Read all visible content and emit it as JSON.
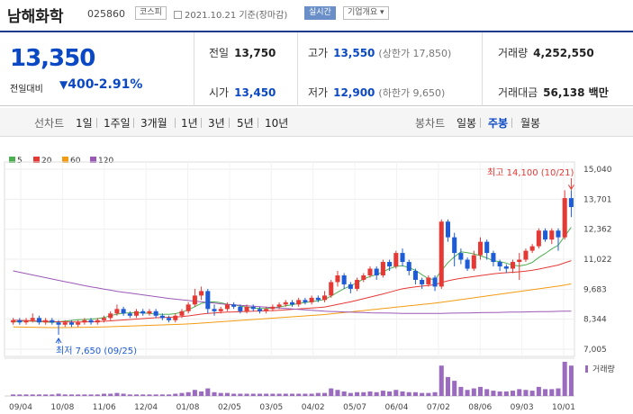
{
  "header": {
    "name": "남해화학",
    "code": "025860",
    "market": "코스피",
    "date": "2021.10.21 기준(장마감)",
    "realtime": "실시간",
    "corp_info": "기업개요"
  },
  "quote": {
    "price": "13,350",
    "change_label": "전일대비",
    "change_value": "400",
    "change_pct": "-2.91%",
    "prev_close_label": "전일",
    "prev_close": "13,750",
    "high_label": "고가",
    "high": "13,550",
    "high_limit": "(상한가 17,850)",
    "volume_label": "거래량",
    "volume": "4,252,550",
    "open_label": "시가",
    "open": "13,450",
    "low_label": "저가",
    "low": "12,900",
    "low_limit": "(하한가 9,650)",
    "amount_label": "거래대금",
    "amount": "56,138 백만"
  },
  "tabs": {
    "line_label": "선차트",
    "line_periods": [
      "1일",
      "1주일",
      "3개월",
      "1년",
      "3년",
      "5년",
      "10년"
    ],
    "candle_label": "봉차트",
    "candle_periods": [
      "일봉",
      "주봉",
      "월봉"
    ],
    "active": "주봉"
  },
  "chart_data": {
    "type": "candlestick",
    "legend": [
      {
        "name": "5",
        "color": "#4caf50"
      },
      {
        "name": "20",
        "color": "#e53935"
      },
      {
        "name": "60",
        "color": "#f39c12"
      },
      {
        "name": "120",
        "color": "#9b59b6"
      }
    ],
    "y_ticks": [
      "15,040",
      "13,701",
      "12,362",
      "11,022",
      "9,683",
      "8,344",
      "7,005"
    ],
    "ylim": [
      7005,
      15040
    ],
    "x_ticks": [
      "09/04",
      "10/08",
      "11/06",
      "12/04",
      "01/08",
      "02/05",
      "03/05",
      "04/02",
      "05/07",
      "06/04",
      "07/02",
      "08/06",
      "09/03",
      "10/01"
    ],
    "high_annotation": "최고 14,100 (10/21)",
    "low_annotation": "최저 7,650 (09/25)",
    "volume_label": "거래량",
    "candles": [
      [
        8200,
        8300,
        8100,
        8400
      ],
      [
        8300,
        8200,
        8100,
        8400
      ],
      [
        8200,
        8300,
        8100,
        8400
      ],
      [
        8300,
        8400,
        8200,
        8600
      ],
      [
        8400,
        8200,
        8100,
        8500
      ],
      [
        8200,
        8300,
        8100,
        8400
      ],
      [
        8300,
        8200,
        8100,
        8400
      ],
      [
        8200,
        8100,
        7650,
        8300
      ],
      [
        8100,
        8200,
        8000,
        8300
      ],
      [
        8200,
        8100,
        8000,
        8300
      ],
      [
        8100,
        8200,
        8000,
        8300
      ],
      [
        8200,
        8300,
        8100,
        8400
      ],
      [
        8300,
        8200,
        8100,
        8400
      ],
      [
        8200,
        8300,
        8100,
        8400
      ],
      [
        8300,
        8400,
        8200,
        8500
      ],
      [
        8400,
        8600,
        8300,
        8700
      ],
      [
        8600,
        8800,
        8500,
        9000
      ],
      [
        8800,
        8600,
        8500,
        8900
      ],
      [
        8600,
        8500,
        8400,
        8700
      ],
      [
        8500,
        8700,
        8400,
        8800
      ],
      [
        8700,
        8600,
        8500,
        8800
      ],
      [
        8600,
        8700,
        8500,
        8800
      ],
      [
        8700,
        8500,
        8400,
        8800
      ],
      [
        8500,
        8400,
        8300,
        8600
      ],
      [
        8400,
        8300,
        8200,
        8500
      ],
      [
        8300,
        8500,
        8200,
        8600
      ],
      [
        8500,
        8700,
        8400,
        8800
      ],
      [
        8700,
        9000,
        8600,
        9100
      ],
      [
        9000,
        9400,
        8900,
        9700
      ],
      [
        9400,
        9600,
        9200,
        9800
      ],
      [
        9600,
        8800,
        8600,
        9700
      ],
      [
        8800,
        8700,
        8500,
        9000
      ],
      [
        8700,
        8800,
        8600,
        8900
      ],
      [
        8800,
        9000,
        8700,
        9100
      ],
      [
        9000,
        8900,
        8800,
        9100
      ],
      [
        8900,
        8700,
        8600,
        9000
      ],
      [
        8700,
        8900,
        8600,
        9000
      ],
      [
        8900,
        8800,
        8700,
        9000
      ],
      [
        8800,
        8700,
        8600,
        8900
      ],
      [
        8700,
        8800,
        8600,
        8900
      ],
      [
        8800,
        8900,
        8700,
        9000
      ],
      [
        8900,
        9000,
        8800,
        9100
      ],
      [
        9000,
        9100,
        8900,
        9200
      ],
      [
        9100,
        9000,
        8900,
        9200
      ],
      [
        9000,
        9200,
        8900,
        9300
      ],
      [
        9200,
        9100,
        9000,
        9300
      ],
      [
        9100,
        9300,
        9000,
        9400
      ],
      [
        9300,
        9200,
        9100,
        9400
      ],
      [
        9200,
        9400,
        9100,
        9600
      ],
      [
        9400,
        10000,
        9300,
        10100
      ],
      [
        10000,
        10300,
        9800,
        10500
      ],
      [
        10300,
        9900,
        9700,
        10400
      ],
      [
        9900,
        9700,
        9500,
        10000
      ],
      [
        9700,
        10100,
        9600,
        10200
      ],
      [
        10100,
        10300,
        10000,
        10400
      ],
      [
        10300,
        10600,
        10200,
        10700
      ],
      [
        10600,
        10300,
        10100,
        10700
      ],
      [
        10300,
        10900,
        10200,
        11000
      ],
      [
        10900,
        10700,
        10500,
        11000
      ],
      [
        10700,
        11300,
        10600,
        11400
      ],
      [
        11300,
        10900,
        10700,
        11500
      ],
      [
        10900,
        10500,
        10300,
        11000
      ],
      [
        10500,
        10100,
        9900,
        10600
      ],
      [
        10100,
        9900,
        9700,
        10200
      ],
      [
        9900,
        10200,
        9800,
        10300
      ],
      [
        10200,
        9800,
        9600,
        10300
      ],
      [
        9800,
        12700,
        9700,
        12800
      ],
      [
        12700,
        12000,
        11800,
        12800
      ],
      [
        12000,
        11300,
        10700,
        12200
      ],
      [
        11300,
        11000,
        10800,
        11500
      ],
      [
        11000,
        10600,
        10500,
        11100
      ],
      [
        10600,
        11200,
        10500,
        11400
      ],
      [
        11200,
        11800,
        11000,
        12000
      ],
      [
        11800,
        11300,
        11000,
        11900
      ],
      [
        11300,
        10900,
        10700,
        11400
      ],
      [
        10900,
        10700,
        10500,
        11000
      ],
      [
        10700,
        10600,
        10400,
        10800
      ],
      [
        10600,
        10900,
        10400,
        11000
      ],
      [
        10900,
        11000,
        10100,
        11300
      ],
      [
        11000,
        11400,
        10900,
        11500
      ],
      [
        11400,
        11600,
        11300,
        11700
      ],
      [
        11600,
        12300,
        11500,
        12400
      ],
      [
        12300,
        11900,
        11800,
        12400
      ],
      [
        11900,
        12300,
        11700,
        12400
      ],
      [
        12300,
        12000,
        11400,
        12400
      ],
      [
        12000,
        13750,
        11900,
        14100
      ],
      [
        13750,
        13350,
        12900,
        14100
      ]
    ],
    "ma5": [
      8220,
      8250,
      8270,
      8250,
      8240,
      8220,
      8200,
      8230,
      8260,
      8290,
      8320,
      8330,
      8350,
      8370,
      8420,
      8500,
      8570,
      8610,
      8630,
      8650,
      8620,
      8600,
      8570,
      8560,
      8560,
      8590,
      8660,
      8770,
      8900,
      9050,
      9110,
      9120,
      9080,
      9010,
      8990,
      8930,
      8880,
      8850,
      8820,
      8820,
      8850,
      8890,
      8940,
      8990,
      9050,
      9090,
      9130,
      9170,
      9230,
      9380,
      9550,
      9710,
      9830,
      9980,
      10140,
      10250,
      10330,
      10460,
      10600,
      10700,
      10730,
      10650,
      10520,
      10330,
      10150,
      10110,
      10520,
      10870,
      11130,
      11350,
      11310,
      11260,
      11180,
      11080,
      10950,
      10920,
      10850,
      10750,
      10720,
      10770,
      10880,
      11100,
      11280,
      11480,
      11650,
      12050,
      12450
    ],
    "ma20": [
      8300,
      8290,
      8280,
      8270,
      8260,
      8250,
      8240,
      8230,
      8225,
      8220,
      8220,
      8225,
      8230,
      8240,
      8250,
      8270,
      8290,
      8310,
      8330,
      8350,
      8370,
      8390,
      8410,
      8420,
      8430,
      8440,
      8460,
      8490,
      8530,
      8570,
      8600,
      8620,
      8640,
      8660,
      8670,
      8680,
      8690,
      8700,
      8710,
      8720,
      8730,
      8745,
      8760,
      8780,
      8800,
      8820,
      8840,
      8860,
      8890,
      8940,
      9000,
      9060,
      9120,
      9190,
      9260,
      9330,
      9400,
      9470,
      9550,
      9630,
      9700,
      9750,
      9790,
      9820,
      9850,
      9890,
      9980,
      10060,
      10120,
      10170,
      10210,
      10250,
      10290,
      10330,
      10370,
      10400,
      10420,
      10440,
      10460,
      10490,
      10530,
      10580,
      10640,
      10700,
      10760,
      10860,
      10960
    ],
    "ma60": [
      8000,
      7995,
      7990,
      7985,
      7980,
      7975,
      7970,
      7970,
      7970,
      7975,
      7980,
      7985,
      7990,
      7995,
      8000,
      8010,
      8020,
      8030,
      8040,
      8050,
      8060,
      8070,
      8080,
      8090,
      8100,
      8110,
      8120,
      8135,
      8150,
      8170,
      8190,
      8210,
      8230,
      8250,
      8270,
      8290,
      8310,
      8330,
      8350,
      8370,
      8390,
      8410,
      8430,
      8450,
      8470,
      8490,
      8510,
      8530,
      8550,
      8580,
      8610,
      8640,
      8670,
      8700,
      8730,
      8760,
      8790,
      8820,
      8850,
      8880,
      8910,
      8940,
      8970,
      9000,
      9030,
      9060,
      9100,
      9140,
      9180,
      9220,
      9260,
      9300,
      9340,
      9380,
      9420,
      9460,
      9500,
      9540,
      9580,
      9620,
      9660,
      9700,
      9740,
      9780,
      9820,
      9870,
      9920
    ],
    "ma120": [
      10500,
      10440,
      10380,
      10320,
      10260,
      10200,
      10140,
      10080,
      10020,
      9960,
      9900,
      9840,
      9790,
      9740,
      9690,
      9640,
      9590,
      9550,
      9510,
      9470,
      9430,
      9390,
      9350,
      9310,
      9270,
      9240,
      9210,
      9180,
      9150,
      9120,
      9090,
      9060,
      9030,
      9000,
      8980,
      8960,
      8940,
      8920,
      8900,
      8880,
      8860,
      8840,
      8820,
      8800,
      8780,
      8760,
      8740,
      8720,
      8700,
      8690,
      8680,
      8670,
      8660,
      8650,
      8640,
      8630,
      8625,
      8620,
      8615,
      8610,
      8605,
      8600,
      8600,
      8600,
      8600,
      8600,
      8605,
      8610,
      8615,
      8620,
      8625,
      8630,
      8635,
      8640,
      8645,
      8650,
      8655,
      8660,
      8665,
      8670,
      8675,
      8680,
      8685,
      8690,
      8695,
      8700,
      8705
    ],
    "volume": [
      2,
      2,
      2,
      2,
      2,
      2,
      2,
      3,
      2,
      2,
      2,
      2,
      2,
      2,
      3,
      3,
      4,
      3,
      2,
      2,
      2,
      2,
      2,
      2,
      2,
      3,
      4,
      5,
      8,
      6,
      10,
      5,
      4,
      4,
      3,
      3,
      3,
      3,
      3,
      3,
      3,
      3,
      3,
      3,
      3,
      3,
      3,
      4,
      4,
      10,
      8,
      6,
      4,
      5,
      5,
      6,
      5,
      7,
      6,
      8,
      6,
      5,
      5,
      4,
      4,
      5,
      40,
      25,
      20,
      12,
      8,
      10,
      12,
      9,
      7,
      6,
      6,
      7,
      9,
      8,
      7,
      12,
      9,
      9,
      10,
      45,
      40
    ]
  }
}
